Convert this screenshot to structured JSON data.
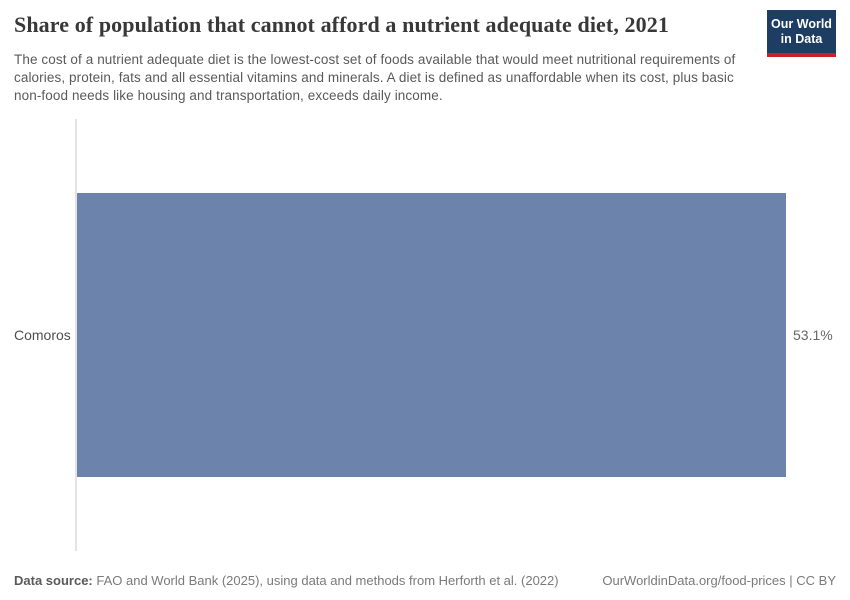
{
  "header": {
    "title": "Share of population that cannot afford a nutrient adequate diet, 2021",
    "subtitle": "The cost of a nutrient adequate diet is the lowest-cost set of foods available that would meet nutritional requirements of calories, protein, fats and all essential vitamins and minerals. A diet is defined as unaffordable when its cost, plus basic non-food needs like housing and transportation, exceeds daily income.",
    "logo": {
      "line1": "Our World",
      "line2": "in Data",
      "bg_color": "#1d3d63",
      "stripe_color": "#c52424"
    }
  },
  "chart_data": {
    "type": "bar",
    "orientation": "horizontal",
    "categories": [
      "Comoros"
    ],
    "values": [
      53.1
    ],
    "value_labels": [
      "53.1%"
    ],
    "title": "Share of population that cannot afford a nutrient adequate diet, 2021",
    "xlabel": "",
    "ylabel": "",
    "xlim": [
      0,
      53.1
    ],
    "grid": false,
    "legend": false,
    "bar_color": "#6c84ac",
    "axis_line_color": "#e3e3e3"
  },
  "footer": {
    "source_label": "Data source:",
    "source_text": " FAO and World Bank (2025), using data and methods from Herforth et al. (2022)",
    "right_text": "OurWorldinData.org/food-prices | CC BY"
  }
}
